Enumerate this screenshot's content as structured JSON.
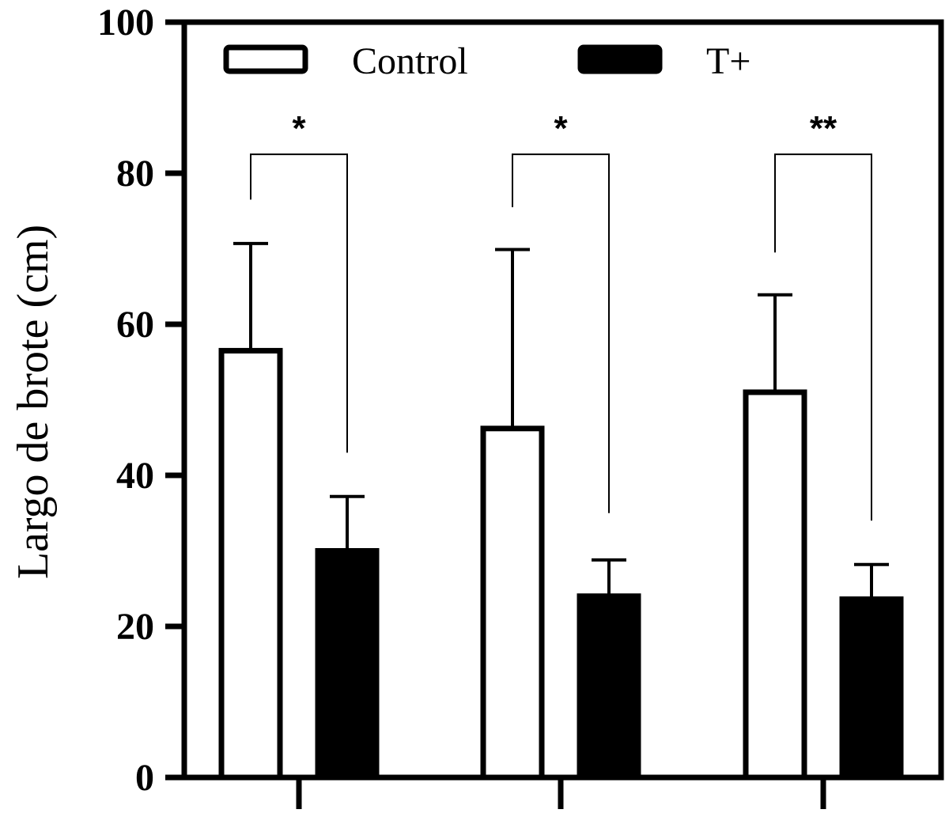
{
  "chart_data": {
    "type": "bar",
    "title": "",
    "xlabel": "",
    "ylabel": "Largo de brote (cm)",
    "ylim": [
      0,
      100
    ],
    "yticks": [
      0,
      20,
      40,
      60,
      80,
      100
    ],
    "grid": false,
    "legend_position": "top",
    "categories": [
      "",
      "",
      ""
    ],
    "series": [
      {
        "name": "Control",
        "fill": "#ffffff",
        "values": [
          56.5,
          46.2,
          51.0
        ],
        "error": [
          14.2,
          23.7,
          12.9
        ]
      },
      {
        "name": "T+",
        "fill": "#000000",
        "values": [
          30.0,
          24.0,
          23.6
        ],
        "error": [
          7.2,
          4.8,
          4.6
        ]
      }
    ],
    "significance": [
      {
        "label": "*",
        "bracket_top": 82.5,
        "left_end": 76.5,
        "right_end": 43.0
      },
      {
        "label": "*",
        "bracket_top": 82.5,
        "left_end": 75.5,
        "right_end": 35.0
      },
      {
        "label": "**",
        "bracket_top": 82.5,
        "left_end": 69.5,
        "right_end": 34.0
      }
    ]
  }
}
